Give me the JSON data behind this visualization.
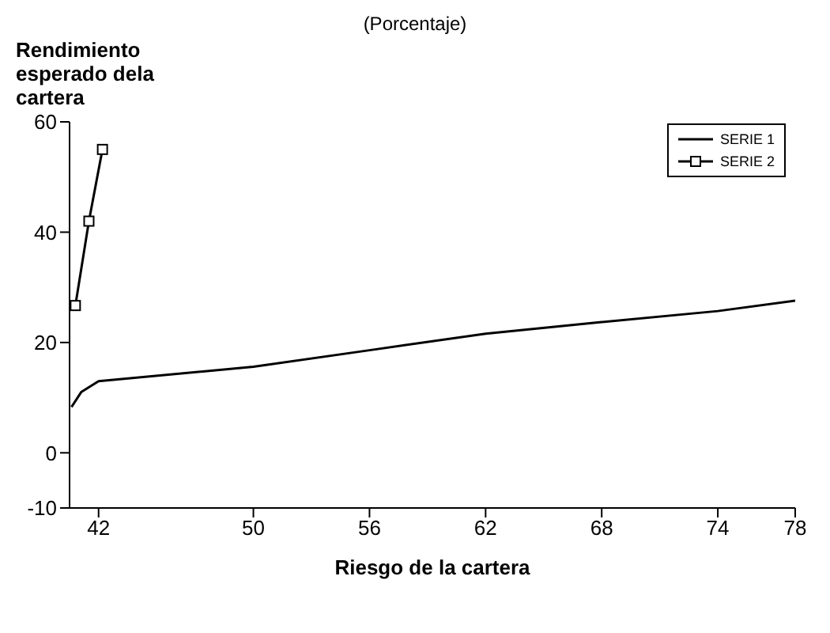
{
  "chart_data": {
    "type": "line",
    "title": "(Porcentaje)",
    "ylabel": "Rendimiento esperado dela cartera",
    "xlabel": "Riesgo de la cartera",
    "xlim": [
      40.5,
      78
    ],
    "xticks": [
      42,
      50,
      56,
      62,
      68,
      74,
      78
    ],
    "ylim": [
      -10,
      60
    ],
    "yticks": [
      -10,
      0,
      20,
      40,
      60
    ],
    "grid": false,
    "legend": "top right",
    "series": [
      {
        "name": "SERIE 1",
        "color": "#000000",
        "marker": "none",
        "x": [
          40.6,
          41.1,
          42,
          50,
          56,
          62,
          68,
          74,
          78
        ],
        "values": [
          8.3,
          11,
          13,
          15.6,
          18.6,
          21.6,
          23.7,
          25.7,
          27.6
        ]
      },
      {
        "name": "SERIE 2",
        "color": "#000000",
        "marker": "square",
        "x": [
          40.8,
          41.5,
          42.2
        ],
        "values": [
          26.7,
          42,
          55
        ]
      }
    ]
  }
}
